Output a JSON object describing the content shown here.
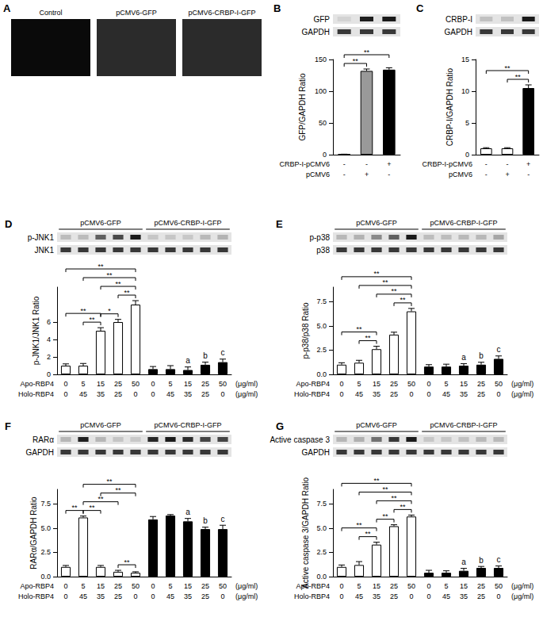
{
  "images": {
    "panel": "A",
    "labels": [
      "Control",
      "pCMV6-GFP",
      "pCMV6-CRBP-I-GFP"
    ]
  },
  "chart_data": [
    {
      "type": "bar",
      "panel": "B",
      "blot_labels": [
        "GFP",
        "GAPDH"
      ],
      "y_label": "GFP/GAPDH Ratio",
      "x_rows": [
        {
          "label": "CRBP-I-pCMV6",
          "values": [
            "-",
            "-",
            "+"
          ]
        },
        {
          "label": "pCMV6",
          "values": [
            "-",
            "+",
            "-"
          ]
        }
      ],
      "values": [
        0.5,
        132,
        134
      ],
      "errors": [
        0.3,
        3,
        3
      ],
      "colors": [
        "#ffffff",
        "#999999",
        "#000000"
      ],
      "ylim": [
        0,
        150
      ],
      "yticks": [
        0,
        50,
        100,
        150
      ],
      "brackets": [
        {
          "from": 0,
          "to": 1,
          "label": "**"
        },
        {
          "from": 0,
          "to": 2,
          "label": "**"
        }
      ]
    },
    {
      "type": "bar",
      "panel": "C",
      "blot_labels": [
        "CRBP-I",
        "GAPDH"
      ],
      "y_label": "CRBP-I/GAPDH Ratio",
      "x_rows": [
        {
          "label": "CRBP-I-pCMV6",
          "values": [
            "-",
            "-",
            "+"
          ]
        },
        {
          "label": "pCMV6",
          "values": [
            "-",
            "+",
            "-"
          ]
        }
      ],
      "values": [
        1,
        1,
        10.5
      ],
      "errors": [
        0.1,
        0.1,
        0.5
      ],
      "colors": [
        "#ffffff",
        "#ffffff",
        "#000000"
      ],
      "ylim": [
        0,
        15
      ],
      "yticks": [
        0,
        5,
        10,
        15
      ],
      "brackets": [
        {
          "from": 0,
          "to": 2,
          "label": "**"
        },
        {
          "from": 1,
          "to": 2,
          "label": "**"
        }
      ]
    },
    {
      "type": "bar",
      "panel": "D",
      "blot_labels": [
        "p-JNK1",
        "JNK1"
      ],
      "y_label": "p-JNK1/JNK1 Ratio",
      "groups": [
        {
          "label": "pCMV6-GFP",
          "from": 0,
          "to": 4
        },
        {
          "label": "pCMV6-CRBP-I-GFP",
          "from": 5,
          "to": 9
        }
      ],
      "x_rows": [
        {
          "label": "Apo-RBP4",
          "values": [
            0,
            5,
            15,
            25,
            50,
            0,
            5,
            15,
            25,
            50
          ]
        },
        {
          "label": "Holo-RBP4",
          "values": [
            0,
            45,
            35,
            25,
            0,
            0,
            45,
            35,
            25,
            0
          ]
        }
      ],
      "x_unit": "(μg/ml)",
      "values": [
        1.0,
        1.0,
        5.0,
        6.0,
        8.0,
        0.6,
        0.6,
        0.5,
        1.1,
        1.4
      ],
      "errors": [
        0.2,
        0.25,
        0.35,
        0.3,
        0.45,
        0.3,
        0.4,
        0.35,
        0.3,
        0.35
      ],
      "colors": [
        "#ffffff",
        "#ffffff",
        "#ffffff",
        "#ffffff",
        "#ffffff",
        "#000000",
        "#000000",
        "#000000",
        "#000000",
        "#000000"
      ],
      "ylim": [
        0,
        10
      ],
      "yticks": [
        0,
        2,
        4,
        6
      ],
      "brackets": [
        {
          "from": 0,
          "to": 4,
          "label": "**"
        },
        {
          "from": 1,
          "to": 4,
          "label": "**"
        },
        {
          "from": 2,
          "to": 4,
          "label": "**"
        },
        {
          "from": 3,
          "to": 4,
          "label": "**"
        },
        {
          "from": 0,
          "to": 2,
          "label": "**"
        },
        {
          "from": 1,
          "to": 2,
          "label": "**"
        },
        {
          "from": 2,
          "to": 3,
          "label": "*"
        }
      ],
      "annotations": [
        {
          "index": 7,
          "label": "a"
        },
        {
          "index": 8,
          "label": "b"
        },
        {
          "index": 9,
          "label": "c"
        }
      ]
    },
    {
      "type": "bar",
      "panel": "E",
      "blot_labels": [
        "p-p38",
        "p38"
      ],
      "y_label": "p-p38/p38 Ratio",
      "groups": [
        {
          "label": "pCMV6-GFP",
          "from": 0,
          "to": 4
        },
        {
          "label": "pCMV6-CRBP-I-GFP",
          "from": 5,
          "to": 9
        }
      ],
      "x_rows": [
        {
          "label": "Apo-RBP4",
          "values": [
            0,
            5,
            15,
            25,
            50,
            0,
            5,
            15,
            25,
            50
          ]
        },
        {
          "label": "Holo-RBP4",
          "values": [
            0,
            45,
            35,
            25,
            0,
            0,
            45,
            35,
            25,
            0
          ]
        }
      ],
      "x_unit": "(μg/ml)",
      "values": [
        1.0,
        1.2,
        2.6,
        4.1,
        6.5,
        0.8,
        0.8,
        0.9,
        1.0,
        1.6
      ],
      "errors": [
        0.2,
        0.25,
        0.3,
        0.25,
        0.3,
        0.2,
        0.25,
        0.2,
        0.25,
        0.3
      ],
      "colors": [
        "#ffffff",
        "#ffffff",
        "#ffffff",
        "#ffffff",
        "#ffffff",
        "#000000",
        "#000000",
        "#000000",
        "#000000",
        "#000000"
      ],
      "ylim": [
        0,
        9
      ],
      "yticks": [
        {
          "value": 0,
          "label": "0.0"
        },
        {
          "value": 2.5,
          "label": "2.5"
        },
        {
          "value": 5,
          "label": "5.0"
        },
        {
          "value": 7.5,
          "label": "7.5"
        }
      ],
      "brackets": [
        {
          "from": 0,
          "to": 4,
          "label": "**"
        },
        {
          "from": 1,
          "to": 4,
          "label": "**"
        },
        {
          "from": 2,
          "to": 4,
          "label": "**"
        },
        {
          "from": 3,
          "to": 4,
          "label": "**"
        },
        {
          "from": 0,
          "to": 2,
          "label": "**"
        },
        {
          "from": 1,
          "to": 2,
          "label": "**"
        }
      ],
      "annotations": [
        {
          "index": 7,
          "label": "a"
        },
        {
          "index": 8,
          "label": "b"
        },
        {
          "index": 9,
          "label": "c"
        }
      ]
    },
    {
      "type": "bar",
      "panel": "F",
      "blot_labels": [
        "RARα",
        "GAPDH"
      ],
      "y_label": "RARα/GAPDH Ratio",
      "groups": [
        {
          "label": "pCMV6-GFP",
          "from": 0,
          "to": 4
        },
        {
          "label": "pCMV6-CRBP-I-GFP",
          "from": 5,
          "to": 9
        }
      ],
      "x_rows": [
        {
          "label": "Apo-RBP4",
          "values": [
            0,
            5,
            15,
            25,
            50,
            0,
            5,
            15,
            25,
            50
          ]
        },
        {
          "label": "Holo-RBP4",
          "values": [
            0,
            45,
            35,
            25,
            0,
            0,
            45,
            35,
            25,
            0
          ]
        }
      ],
      "x_unit": "(μg/ml)",
      "values": [
        1.0,
        6.1,
        1.0,
        0.5,
        0.4,
        5.9,
        6.3,
        5.7,
        4.9,
        4.9
      ],
      "errors": [
        0.15,
        0.15,
        0.15,
        0.15,
        0.1,
        0.3,
        0.1,
        0.3,
        0.2,
        0.4
      ],
      "colors": [
        "#ffffff",
        "#ffffff",
        "#ffffff",
        "#ffffff",
        "#ffffff",
        "#000000",
        "#000000",
        "#000000",
        "#000000",
        "#000000"
      ],
      "ylim": [
        0,
        9
      ],
      "yticks": [
        {
          "value": 0,
          "label": "0.0"
        },
        {
          "value": 2.5,
          "label": "2.5"
        },
        {
          "value": 5,
          "label": "5.0"
        },
        {
          "value": 7.5,
          "label": "7.5"
        }
      ],
      "brackets": [
        {
          "from": 0,
          "to": 1,
          "label": "**"
        },
        {
          "from": 1,
          "to": 2,
          "label": "**"
        },
        {
          "from": 1,
          "to": 3,
          "label": "**"
        },
        {
          "from": 1,
          "to": 4,
          "label": "**"
        },
        {
          "from": 2,
          "to": 4,
          "label": "**"
        },
        {
          "from": 3,
          "to": 4,
          "label": "**"
        }
      ],
      "annotations": [
        {
          "index": 7,
          "label": "a"
        },
        {
          "index": 8,
          "label": "b"
        },
        {
          "index": 9,
          "label": "c"
        }
      ]
    },
    {
      "type": "bar",
      "panel": "G",
      "blot_labels": [
        "Active caspase 3",
        "GAPDH"
      ],
      "y_label": "Active caspase 3/GAPDH Ratio",
      "groups": [
        {
          "label": "pCMV6-GFP",
          "from": 0,
          "to": 4
        },
        {
          "label": "pCMV6-CRBP-I-GFP",
          "from": 5,
          "to": 9
        }
      ],
      "x_rows": [
        {
          "label": "Apo-RBP4",
          "values": [
            0,
            5,
            15,
            25,
            50,
            0,
            5,
            15,
            25,
            50
          ]
        },
        {
          "label": "Holo-RBP4",
          "values": [
            0,
            45,
            35,
            25,
            0,
            0,
            45,
            35,
            25,
            0
          ]
        }
      ],
      "x_unit": "(μg/ml)",
      "values": [
        1.0,
        1.2,
        3.3,
        5.2,
        6.2,
        0.4,
        0.4,
        0.6,
        0.9,
        0.9
      ],
      "errors": [
        0.2,
        0.35,
        0.25,
        0.15,
        0.15,
        0.25,
        0.2,
        0.25,
        0.15,
        0.2
      ],
      "colors": [
        "#ffffff",
        "#ffffff",
        "#ffffff",
        "#ffffff",
        "#ffffff",
        "#000000",
        "#000000",
        "#000000",
        "#000000",
        "#000000"
      ],
      "ylim": [
        0,
        9
      ],
      "yticks": [
        {
          "value": 0,
          "label": "0.0"
        },
        {
          "value": 2.5,
          "label": "2.5"
        },
        {
          "value": 5,
          "label": "5.0"
        },
        {
          "value": 7.5,
          "label": "7.5"
        }
      ],
      "brackets": [
        {
          "from": 0,
          "to": 4,
          "label": "**"
        },
        {
          "from": 1,
          "to": 4,
          "label": "**"
        },
        {
          "from": 2,
          "to": 4,
          "label": "**"
        },
        {
          "from": 3,
          "to": 4,
          "label": "**"
        },
        {
          "from": 0,
          "to": 2,
          "label": "**"
        },
        {
          "from": 1,
          "to": 2,
          "label": "**"
        },
        {
          "from": 2,
          "to": 3,
          "label": "**"
        }
      ],
      "annotations": [
        {
          "index": 7,
          "label": "a"
        },
        {
          "index": 8,
          "label": "b"
        },
        {
          "index": 9,
          "label": "c"
        }
      ]
    }
  ]
}
